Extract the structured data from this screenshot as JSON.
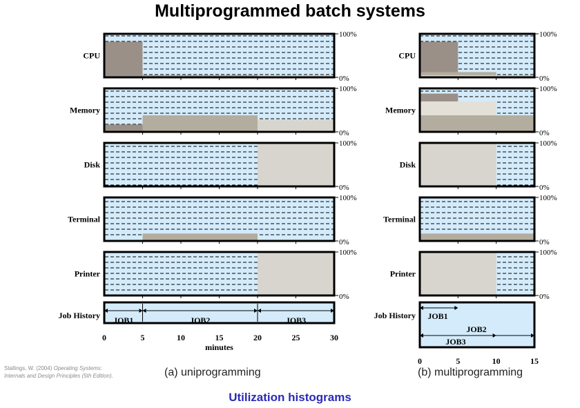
{
  "title": "Multiprogrammed batch systems",
  "footer_title": "Utilization histograms",
  "citation": {
    "author": "Stallings, W. (2004)",
    "work_line1": "Operating Systems:",
    "work_line2": "Internals and Design Principles (5th Edition)."
  },
  "colors": {
    "idle_fill": "#d4ebfb",
    "job1": "#9a9088",
    "job2": "#b3ad9f",
    "job3": "#d8d5ce",
    "job2_light": "#e3e0d8",
    "border": "#000000",
    "footer_text": "#2a2ab8"
  },
  "scale_labels": {
    "top": "100%",
    "bottom": "0%"
  },
  "uniprogramming": {
    "caption": "(a) uniprogramming",
    "x_ticks": [
      "0",
      "5",
      "10",
      "15",
      "20",
      "25",
      "30"
    ],
    "x_axis_label": "minutes",
    "resources": [
      {
        "label": "CPU",
        "segments": [
          {
            "job": "job1",
            "start": 0,
            "end": 5,
            "level": 0.82
          },
          {
            "job": "job2",
            "start": 5,
            "end": 20,
            "level": 0.05
          },
          {
            "job": "job3",
            "start": 20,
            "end": 30,
            "level": 0.05
          }
        ]
      },
      {
        "label": "Memory",
        "segments": [
          {
            "job": "job1",
            "start": 0,
            "end": 5,
            "level": 0.17
          },
          {
            "job": "job2",
            "start": 5,
            "end": 20,
            "level": 0.38
          },
          {
            "job": "job3",
            "start": 20,
            "end": 30,
            "level": 0.28
          }
        ]
      },
      {
        "label": "Disk",
        "segments": [
          {
            "job": "job3",
            "start": 20,
            "end": 30,
            "level": 1.0
          }
        ]
      },
      {
        "label": "Terminal",
        "segments": [
          {
            "job": "job2",
            "start": 5,
            "end": 20,
            "level": 0.17
          }
        ]
      },
      {
        "label": "Printer",
        "segments": [
          {
            "job": "job3",
            "start": 20,
            "end": 30,
            "level": 1.0
          }
        ]
      }
    ],
    "job_history_label": "Job History",
    "jobs": [
      {
        "name": "JOB1",
        "start": 0,
        "end": 5
      },
      {
        "name": "JOB2",
        "start": 5,
        "end": 20
      },
      {
        "name": "JOB3",
        "start": 20,
        "end": 30
      }
    ]
  },
  "multiprogramming": {
    "caption": "(b) multiprogramming",
    "x_ticks": [
      "0",
      "5",
      "10",
      "15"
    ],
    "resources": [
      {
        "label": "CPU",
        "segments": [
          {
            "job": "job1",
            "start": 0,
            "end": 5,
            "level": 0.82
          },
          {
            "job": "job2",
            "start": 0,
            "end": 10,
            "level": 0.12
          },
          {
            "job": "job3",
            "start": 0,
            "end": 15,
            "level": 0.05
          }
        ]
      },
      {
        "label": "Memory",
        "segments": [
          {
            "job": "job2_light",
            "start": 0,
            "end": 10,
            "level": 0.7
          },
          {
            "job": "job1",
            "start": 0,
            "end": 5,
            "level": 0.88,
            "base": 0.7
          },
          {
            "job": "job2",
            "start": 0,
            "end": 15,
            "level": 0.38
          }
        ]
      },
      {
        "label": "Disk",
        "segments": [
          {
            "job": "job3",
            "start": 0,
            "end": 10,
            "level": 1.0
          }
        ]
      },
      {
        "label": "Terminal",
        "segments": [
          {
            "job": "job2",
            "start": 0,
            "end": 15,
            "level": 0.17
          }
        ]
      },
      {
        "label": "Printer",
        "segments": [
          {
            "job": "job3",
            "start": 0,
            "end": 10,
            "level": 1.0
          }
        ]
      }
    ],
    "job_history_label": "Job History",
    "jobs": [
      {
        "name": "JOB1",
        "start": 0,
        "end": 5
      },
      {
        "name": "JOB2",
        "start": 0,
        "end": 15
      },
      {
        "name": "JOB3",
        "start": 0,
        "end": 10
      }
    ]
  }
}
